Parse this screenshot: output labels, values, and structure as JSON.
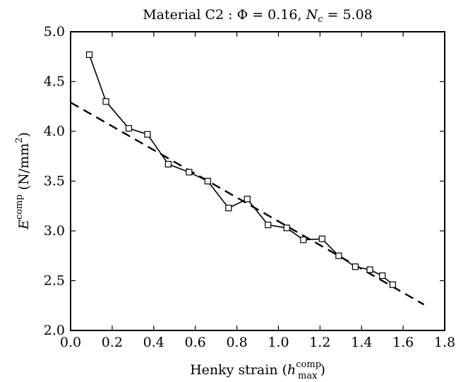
{
  "chart_data": {
    "type": "line",
    "title_parts": {
      "prefix": "Material C2 : ",
      "phi_symbol": "Φ",
      "phi_eq": " = 0.16, ",
      "nc_N": "N",
      "nc_sub": "c",
      "nc_eq": " = 5.08"
    },
    "ylabel_parts": {
      "E": "E",
      "sup": "comp",
      "units": " (N/mm",
      "units_sup": "2",
      "units_close": ")"
    },
    "xlabel_parts": {
      "prefix": "Henky strain (",
      "h": "h",
      "sup": "comp",
      "sub": "max",
      "close": ")"
    },
    "xlim": [
      0.0,
      1.8
    ],
    "ylim": [
      2.0,
      5.0
    ],
    "xticks": [
      "0.0",
      "0.2",
      "0.4",
      "0.6",
      "0.8",
      "1.0",
      "1.2",
      "1.4",
      "1.6",
      "1.8"
    ],
    "yticks": [
      "2.0",
      "2.5",
      "3.0",
      "3.5",
      "4.0",
      "4.5",
      "5.0"
    ],
    "grid": false,
    "series": [
      {
        "style": "solid-square-markers",
        "color": "#000000",
        "x": [
          0.09,
          0.17,
          0.28,
          0.37,
          0.47,
          0.57,
          0.66,
          0.76,
          0.85,
          0.95,
          1.04,
          1.12,
          1.21,
          1.29,
          1.37,
          1.44,
          1.5,
          1.55
        ],
        "y": [
          4.77,
          4.3,
          4.03,
          3.97,
          3.67,
          3.59,
          3.5,
          3.23,
          3.32,
          3.06,
          3.03,
          2.91,
          2.92,
          2.75,
          2.64,
          2.61,
          2.55,
          2.46
        ]
      },
      {
        "style": "dashed-fit",
        "color": "#000000",
        "x": [
          0.0,
          1.7
        ],
        "y": [
          4.29,
          2.26
        ]
      }
    ]
  }
}
